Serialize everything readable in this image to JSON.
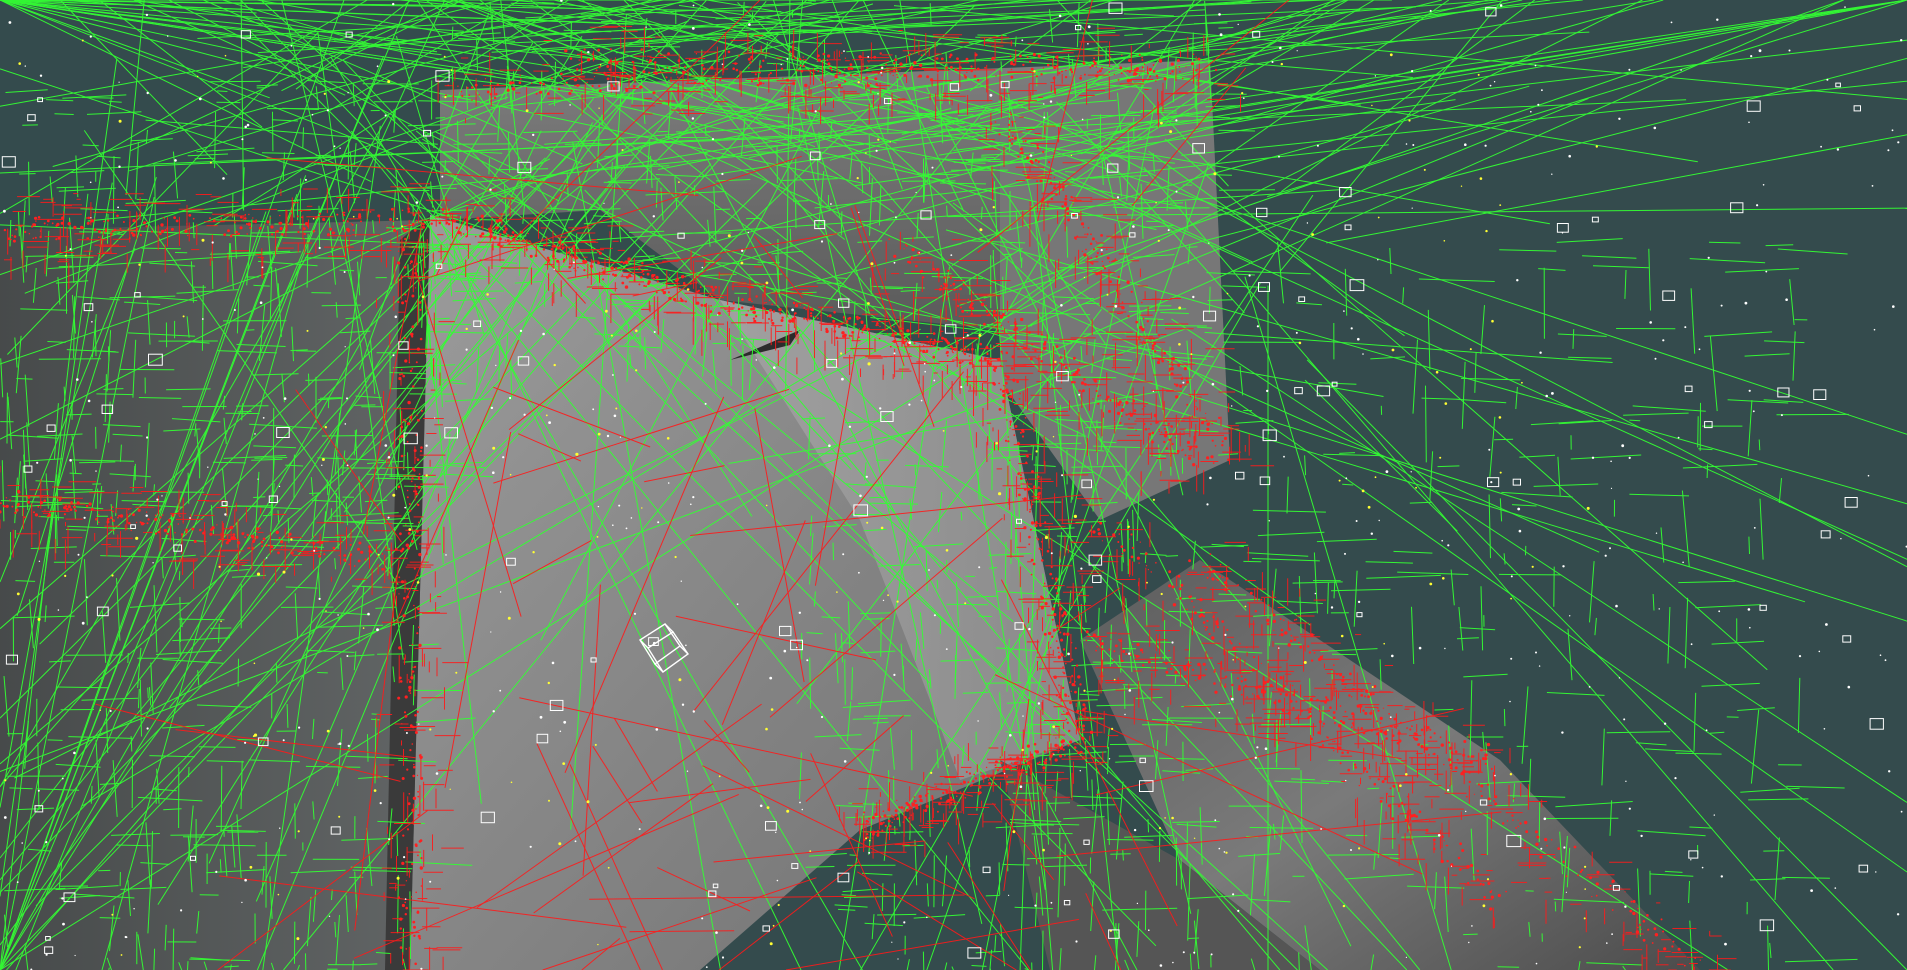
{
  "viewport": {
    "background_color": "#344b4d",
    "octree_leaf_color": "#ff1a1a",
    "octree_node_color": "#33ff33",
    "surface_light_color": "#a6a6a6",
    "surface_dark_color": "#3f3f3f",
    "marker_color": "#ffff00",
    "box_color": "#ffffff"
  }
}
